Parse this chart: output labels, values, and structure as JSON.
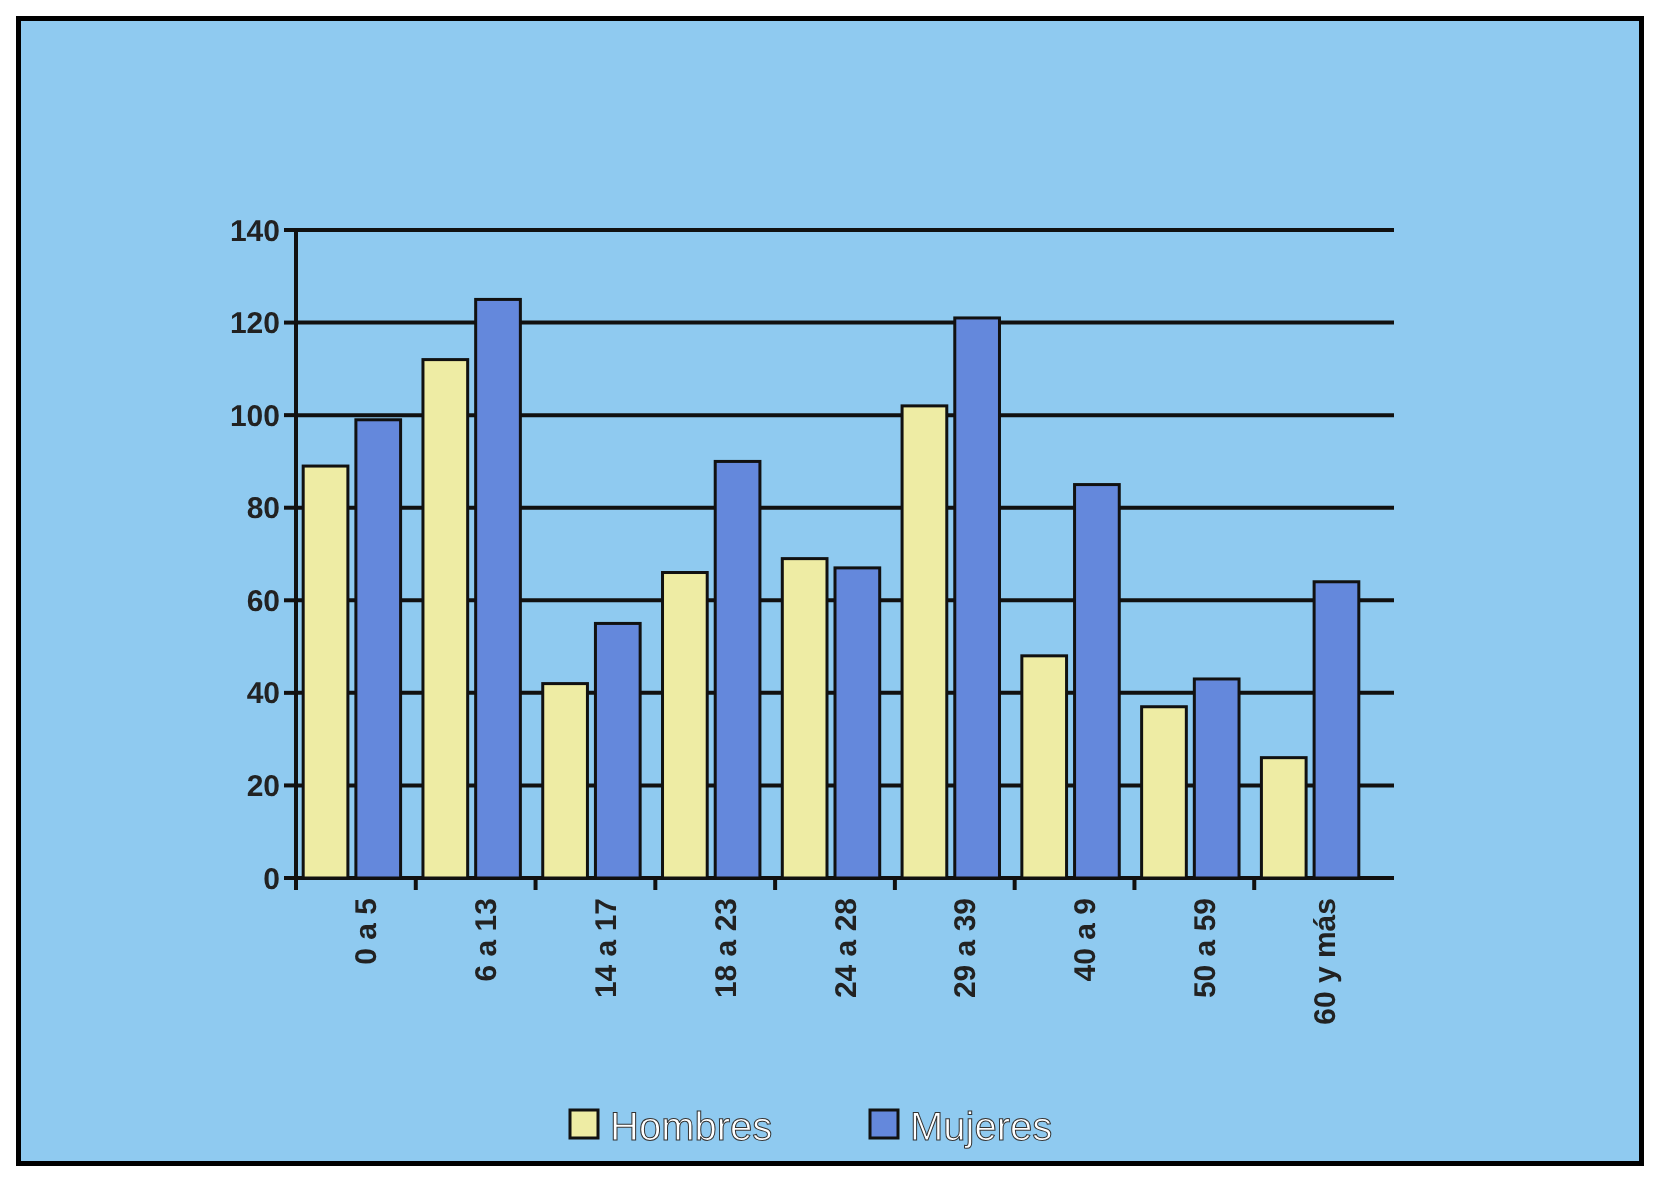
{
  "chart_data": {
    "type": "bar",
    "categories": [
      "0 a 5",
      "6 a 13",
      "14 a 17",
      "18 a 23",
      "24 a 28",
      "29 a 39",
      "40 a 9",
      "50 a 59",
      "60 y más"
    ],
    "series": [
      {
        "name": "Hombres",
        "color": "#eeeca4",
        "values": [
          89,
          112,
          42,
          66,
          69,
          102,
          48,
          37,
          26
        ]
      },
      {
        "name": "Mujeres",
        "color": "#6488dc",
        "values": [
          99,
          125,
          55,
          90,
          67,
          121,
          85,
          43,
          64
        ]
      }
    ],
    "ylim": [
      0,
      140
    ],
    "yticks": [
      0,
      20,
      40,
      60,
      80,
      100,
      120,
      140
    ],
    "grid": "y",
    "legend": "bottom"
  }
}
